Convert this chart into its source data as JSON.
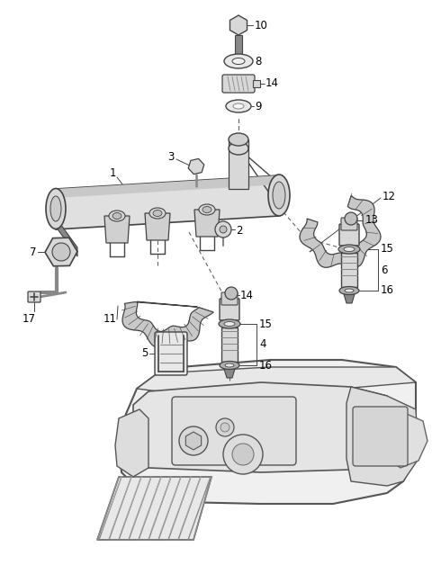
{
  "bg_color": "#ffffff",
  "line_color": "#444444",
  "gray_dark": "#555555",
  "gray_med": "#888888",
  "gray_light": "#bbbbbb",
  "gray_fill": "#d8d8d8",
  "gray_fill2": "#e8e8e8",
  "label_fs": 8.5,
  "fig_w": 4.8,
  "fig_h": 6.48,
  "dpi": 100
}
